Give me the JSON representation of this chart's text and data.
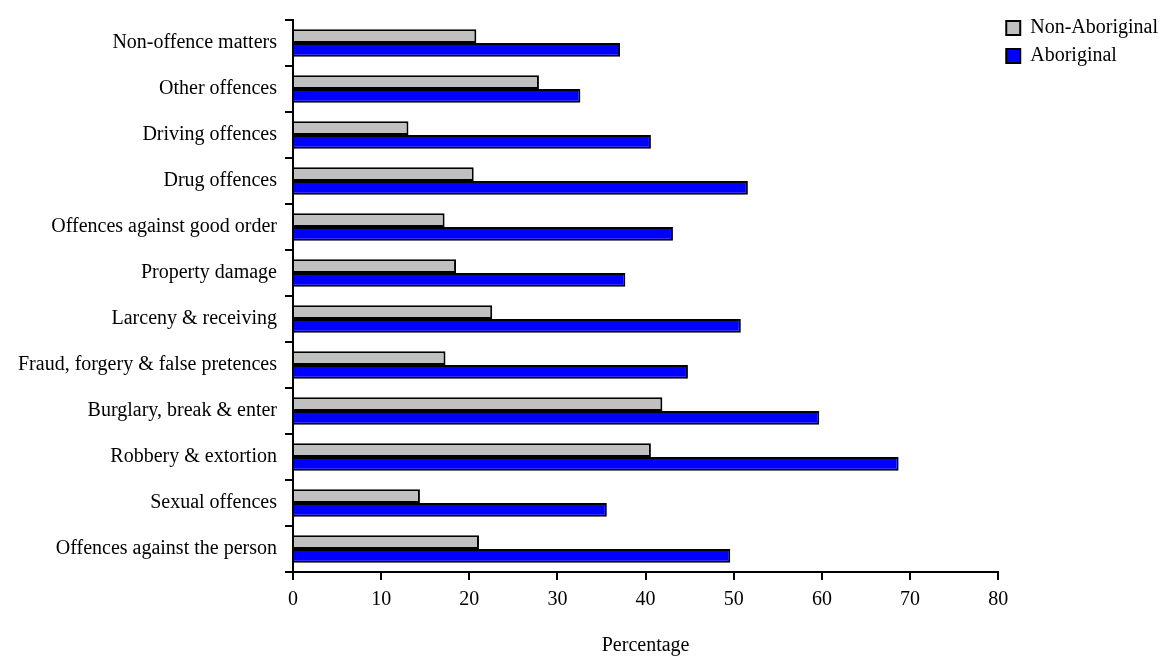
{
  "chart_data": {
    "type": "bar",
    "orientation": "horizontal",
    "xlabel": "Percentage",
    "categories": [
      "Non-offence matters",
      "Other offences",
      "Driving offences",
      "Drug offences",
      "Offences against good order",
      "Property damage",
      "Larceny & receiving",
      "Fraud, forgery & false pretences",
      "Burglary, break & enter",
      "Robbery & extortion",
      "Sexual offences",
      "Offences against the person"
    ],
    "series": [
      {
        "name": "Non-Aboriginal",
        "color": "#c0c0c0",
        "values": [
          20.8,
          27.9,
          13.1,
          20.5,
          17.2,
          18.5,
          22.6,
          17.3,
          41.9,
          40.6,
          14.4,
          21.1
        ]
      },
      {
        "name": "Aboriginal",
        "color": "#0000ff",
        "values": [
          37.1,
          32.6,
          40.6,
          51.6,
          43.1,
          37.7,
          50.8,
          44.8,
          59.7,
          68.7,
          35.6,
          49.6
        ]
      }
    ],
    "xlim": [
      0,
      80
    ],
    "xticks": [
      0,
      10,
      20,
      30,
      40,
      50,
      60,
      70,
      80
    ],
    "grid": false,
    "legend": "top right"
  }
}
